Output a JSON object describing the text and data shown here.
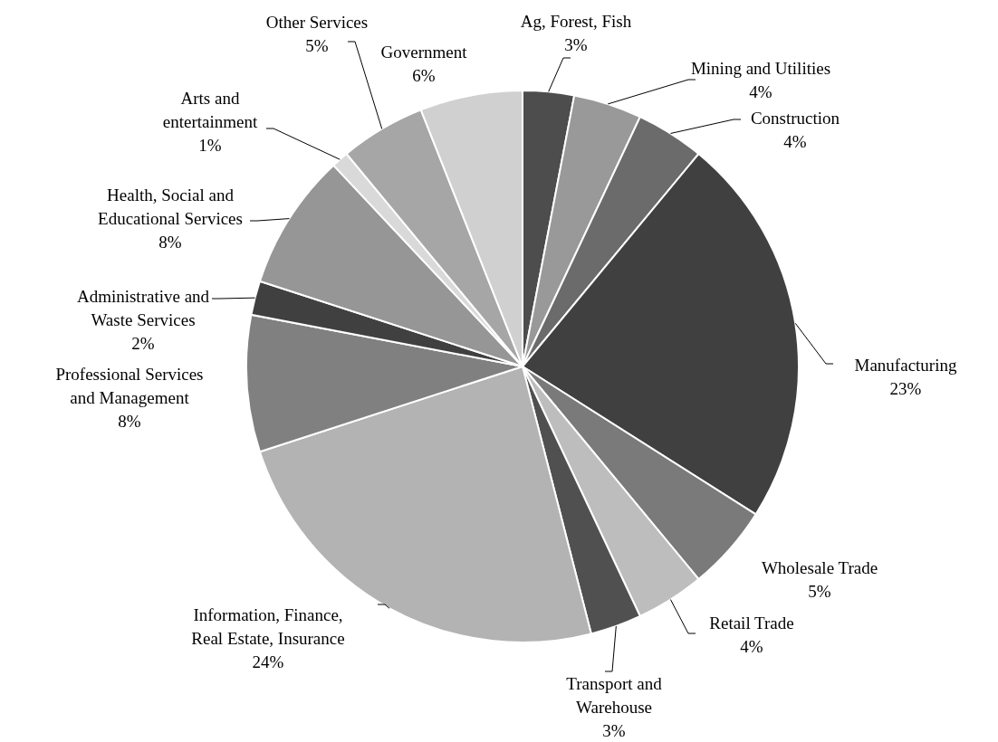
{
  "chart_data": {
    "type": "pie",
    "categories": [
      "Ag, Forest, Fish",
      "Mining and Utilities",
      "Construction",
      "Manufacturing",
      "Wholesale Trade",
      "Retail Trade",
      "Transport and Warehouse",
      "Information, Finance, Real Estate, Insurance",
      "Professional Services and Management",
      "Administrative and Waste Services",
      "Health, Social and Educational Services",
      "Arts and entertainment",
      "Other Services",
      "Government"
    ],
    "values": [
      3,
      4,
      4,
      23,
      5,
      4,
      3,
      24,
      8,
      2,
      8,
      1,
      5,
      6
    ],
    "colors": [
      "#4d4d4d",
      "#999999",
      "#6b6b6b",
      "#404040",
      "#7a7a7a",
      "#bdbdbd",
      "#505050",
      "#b3b3b3",
      "#808080",
      "#404040",
      "#969696",
      "#d9d9d9",
      "#a6a6a6",
      "#d0d0d0"
    ],
    "value_labels": [
      "3%",
      "4%",
      "4%",
      "23%",
      "5%",
      "4%",
      "3%",
      "24%",
      "8%",
      "2%",
      "8%",
      "1%",
      "5%",
      "6%"
    ]
  }
}
